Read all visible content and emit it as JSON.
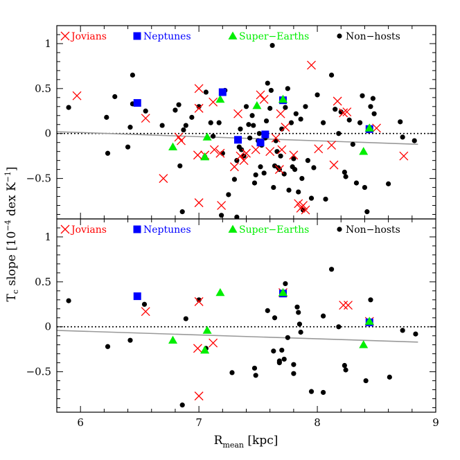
{
  "chart_data": {
    "type": "scatter",
    "xlabel": "R",
    "xlabel_sub": "mean",
    "xlabel_unit": " [kpc]",
    "ylabel": "T",
    "ylabel_sub": "c",
    "ylabel_rest": " slope [10",
    "ylabel_sup": "−4",
    "ylabel_unit": " dex K",
    "ylabel_sup2": "−1",
    "ylabel_end": "]",
    "xlim": [
      5.8,
      9.0
    ],
    "xticks": [
      6,
      7,
      8,
      9
    ],
    "ylim": [
      -0.95,
      1.2
    ],
    "yticks": [
      -0.5,
      0,
      0.5,
      1
    ],
    "ytick_labels": [
      "−0.5",
      "0",
      "0.5",
      "1"
    ],
    "legend": [
      {
        "key": "jovians",
        "label": "Jovians",
        "color": "#ff0000",
        "marker": "x"
      },
      {
        "key": "neptunes",
        "label": "Neptunes",
        "color": "#0000ff",
        "marker": "square"
      },
      {
        "key": "superearths",
        "label": "Super−Earths",
        "color": "#00ee00",
        "marker": "triangle"
      },
      {
        "key": "nonhosts",
        "label": "Non−hosts",
        "color": "#000000",
        "marker": "circle"
      }
    ],
    "panels": [
      {
        "name": "top",
        "zero_line": true,
        "fit_line": {
          "x": [
            5.8,
            8.85
          ],
          "y": [
            0.02,
            -0.12
          ],
          "color": "#999999"
        },
        "series": {
          "nonhosts": [
            [
              5.9,
              0.29
            ],
            [
              6.22,
              0.18
            ],
            [
              6.23,
              -0.22
            ],
            [
              6.29,
              0.41
            ],
            [
              6.4,
              -0.15
            ],
            [
              6.42,
              0.07
            ],
            [
              6.44,
              0.65
            ],
            [
              6.44,
              0.33
            ],
            [
              6.55,
              0.25
            ],
            [
              6.69,
              0.09
            ],
            [
              6.8,
              0.26
            ],
            [
              6.83,
              0.32
            ],
            [
              6.84,
              -0.36
            ],
            [
              6.86,
              -0.87
            ],
            [
              6.87,
              0.04
            ],
            [
              6.89,
              0.09
            ],
            [
              6.94,
              0.18
            ],
            [
              7.0,
              0.3
            ],
            [
              7.05,
              -0.26
            ],
            [
              7.06,
              0.46
            ],
            [
              7.1,
              0.12
            ],
            [
              7.12,
              -0.03
            ],
            [
              7.17,
              0.12
            ],
            [
              7.19,
              -0.91
            ],
            [
              7.2,
              -0.22
            ],
            [
              7.22,
              0.48
            ],
            [
              7.25,
              -0.68
            ],
            [
              7.3,
              -0.51
            ],
            [
              7.32,
              -0.3
            ],
            [
              7.32,
              -0.93
            ],
            [
              7.34,
              -0.15
            ],
            [
              7.35,
              0.05
            ],
            [
              7.36,
              -0.18
            ],
            [
              7.38,
              -0.25
            ],
            [
              7.4,
              0.3
            ],
            [
              7.42,
              0.1
            ],
            [
              7.43,
              -0.05
            ],
            [
              7.45,
              0.2
            ],
            [
              7.46,
              0.09
            ],
            [
              7.47,
              -0.55
            ],
            [
              7.48,
              -0.46
            ],
            [
              7.5,
              -0.08
            ],
            [
              7.51,
              0.0
            ],
            [
              7.52,
              -0.37
            ],
            [
              7.53,
              -0.13
            ],
            [
              7.55,
              -0.44
            ],
            [
              7.56,
              -0.05
            ],
            [
              7.57,
              0.14
            ],
            [
              7.58,
              0.56
            ],
            [
              7.6,
              0.28
            ],
            [
              7.61,
              0.48
            ],
            [
              7.62,
              0.98
            ],
            [
              7.63,
              -0.6
            ],
            [
              7.64,
              -0.36
            ],
            [
              7.65,
              -0.08
            ],
            [
              7.66,
              -0.2
            ],
            [
              7.67,
              -0.38
            ],
            [
              7.68,
              -0.4
            ],
            [
              7.69,
              -0.25
            ],
            [
              7.7,
              0.05
            ],
            [
              7.72,
              -0.45
            ],
            [
              7.73,
              0.29
            ],
            [
              7.75,
              0.5
            ],
            [
              7.76,
              -0.63
            ],
            [
              7.78,
              0.12
            ],
            [
              7.79,
              -0.37
            ],
            [
              7.8,
              -0.28
            ],
            [
              7.81,
              -0.4
            ],
            [
              7.82,
              0.22
            ],
            [
              7.84,
              -0.65
            ],
            [
              7.86,
              0.16
            ],
            [
              7.87,
              -0.5
            ],
            [
              7.88,
              -0.85
            ],
            [
              7.9,
              0.3
            ],
            [
              7.92,
              -0.3
            ],
            [
              7.95,
              -0.72
            ],
            [
              7.97,
              -0.38
            ],
            [
              8.0,
              0.43
            ],
            [
              8.05,
              0.12
            ],
            [
              8.07,
              -0.73
            ],
            [
              8.12,
              0.65
            ],
            [
              8.15,
              0.27
            ],
            [
              8.18,
              0.0
            ],
            [
              8.2,
              0.24
            ],
            [
              8.23,
              -0.43
            ],
            [
              8.24,
              -0.48
            ],
            [
              8.27,
              0.15
            ],
            [
              8.3,
              -0.12
            ],
            [
              8.33,
              -0.55
            ],
            [
              8.36,
              0.12
            ],
            [
              8.38,
              0.42
            ],
            [
              8.4,
              -0.6
            ],
            [
              8.42,
              -0.87
            ],
            [
              8.43,
              0.03
            ],
            [
              8.45,
              0.3
            ],
            [
              8.47,
              0.39
            ],
            [
              8.48,
              0.22
            ],
            [
              8.6,
              -0.56
            ],
            [
              8.7,
              0.13
            ],
            [
              8.72,
              -0.04
            ],
            [
              8.82,
              -0.08
            ]
          ],
          "jovians": [
            [
              5.97,
              0.42
            ],
            [
              6.55,
              0.17
            ],
            [
              6.7,
              -0.5
            ],
            [
              6.83,
              -0.04
            ],
            [
              6.85,
              -0.08
            ],
            [
              6.99,
              -0.24
            ],
            [
              7.0,
              0.28
            ],
            [
              7.0,
              0.5
            ],
            [
              7.0,
              -0.77
            ],
            [
              7.05,
              -0.24
            ],
            [
              7.12,
              0.35
            ],
            [
              7.13,
              -0.18
            ],
            [
              7.18,
              -0.22
            ],
            [
              7.19,
              -0.8
            ],
            [
              7.3,
              -0.37
            ],
            [
              7.33,
              0.22
            ],
            [
              7.35,
              -0.25
            ],
            [
              7.38,
              -0.3
            ],
            [
              7.4,
              -0.22
            ],
            [
              7.48,
              -0.18
            ],
            [
              7.52,
              0.43
            ],
            [
              7.55,
              0.38
            ],
            [
              7.6,
              -0.2
            ],
            [
              7.65,
              -0.05
            ],
            [
              7.68,
              -0.4
            ],
            [
              7.69,
              0.22
            ],
            [
              7.7,
              -0.18
            ],
            [
              7.73,
              0.07
            ],
            [
              7.8,
              -0.24
            ],
            [
              7.84,
              -0.78
            ],
            [
              7.86,
              -0.83
            ],
            [
              7.88,
              -0.8
            ],
            [
              7.9,
              -0.85
            ],
            [
              7.95,
              0.76
            ],
            [
              8.01,
              -0.17
            ],
            [
              8.12,
              -0.13
            ],
            [
              8.14,
              -0.35
            ],
            [
              8.17,
              0.36
            ],
            [
              8.22,
              0.23
            ],
            [
              8.25,
              0.24
            ],
            [
              8.5,
              0.06
            ],
            [
              8.73,
              -0.25
            ]
          ],
          "neptunes": [
            [
              6.48,
              0.34
            ],
            [
              7.2,
              0.46
            ],
            [
              7.33,
              -0.07
            ],
            [
              7.52,
              -0.1
            ],
            [
              7.56,
              -0.01
            ],
            [
              7.71,
              0.37
            ],
            [
              8.44,
              0.05
            ]
          ],
          "superearths": [
            [
              6.78,
              -0.15
            ],
            [
              7.05,
              -0.26
            ],
            [
              7.07,
              -0.04
            ],
            [
              7.18,
              0.38
            ],
            [
              7.49,
              0.31
            ],
            [
              7.71,
              0.38
            ],
            [
              8.39,
              -0.2
            ],
            [
              8.44,
              0.06
            ]
          ]
        }
      },
      {
        "name": "bottom",
        "zero_line": true,
        "fit_line": {
          "x": [
            5.8,
            8.85
          ],
          "y": [
            -0.04,
            -0.17
          ],
          "color": "#999999"
        },
        "series": {
          "nonhosts": [
            [
              5.9,
              0.29
            ],
            [
              6.23,
              -0.22
            ],
            [
              6.42,
              -0.15
            ],
            [
              6.49,
              0.33
            ],
            [
              6.54,
              0.25
            ],
            [
              6.86,
              -0.87
            ],
            [
              6.89,
              0.09
            ],
            [
              7.0,
              0.3
            ],
            [
              7.06,
              -0.24
            ],
            [
              7.28,
              -0.51
            ],
            [
              7.47,
              -0.46
            ],
            [
              7.48,
              -0.54
            ],
            [
              7.58,
              0.18
            ],
            [
              7.63,
              -0.27
            ],
            [
              7.64,
              0.1
            ],
            [
              7.68,
              -0.38
            ],
            [
              7.68,
              -0.4
            ],
            [
              7.7,
              -0.26
            ],
            [
              7.72,
              -0.36
            ],
            [
              7.73,
              0.48
            ],
            [
              7.75,
              -0.12
            ],
            [
              7.8,
              -0.52
            ],
            [
              7.8,
              -0.42
            ],
            [
              7.83,
              0.22
            ],
            [
              7.84,
              0.16
            ],
            [
              7.85,
              0.03
            ],
            [
              7.86,
              -0.06
            ],
            [
              7.95,
              -0.72
            ],
            [
              8.05,
              -0.73
            ],
            [
              8.12,
              0.64
            ],
            [
              8.05,
              0.12
            ],
            [
              8.18,
              0.0
            ],
            [
              8.23,
              -0.43
            ],
            [
              8.24,
              -0.48
            ],
            [
              8.41,
              -0.6
            ],
            [
              8.45,
              0.3
            ],
            [
              8.61,
              -0.56
            ],
            [
              8.72,
              -0.04
            ],
            [
              8.83,
              -0.08
            ]
          ],
          "jovians": [
            [
              6.55,
              0.17
            ],
            [
              6.99,
              -0.24
            ],
            [
              7.0,
              0.28
            ],
            [
              7.0,
              -0.77
            ],
            [
              7.12,
              -0.18
            ],
            [
              7.71,
              0.38
            ],
            [
              8.22,
              0.24
            ],
            [
              8.26,
              0.24
            ],
            [
              8.44,
              0.06
            ]
          ],
          "neptunes": [
            [
              6.48,
              0.34
            ],
            [
              7.71,
              0.37
            ],
            [
              8.44,
              0.05
            ]
          ],
          "superearths": [
            [
              6.78,
              -0.15
            ],
            [
              7.05,
              -0.26
            ],
            [
              7.07,
              -0.04
            ],
            [
              7.18,
              0.38
            ],
            [
              7.71,
              0.38
            ],
            [
              8.39,
              -0.2
            ],
            [
              8.44,
              0.06
            ]
          ]
        }
      }
    ]
  }
}
